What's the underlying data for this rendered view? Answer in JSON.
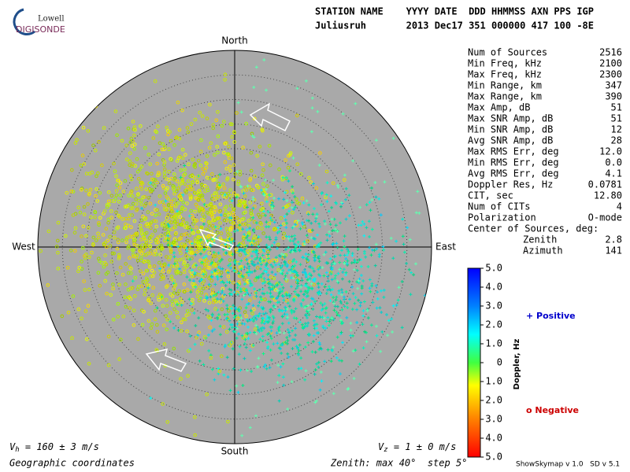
{
  "logo": {
    "brand": "Lowell",
    "product": "DIGISONDE"
  },
  "header": {
    "line1": "STATION NAME    YYYY DATE  DDD HHMMSS AXN PPS IGP",
    "line2": "Juliusruh       2013 Dec17 351 000000 417 100 -8E"
  },
  "directions": {
    "north": "North",
    "south": "South",
    "west": "West",
    "east": "East"
  },
  "parameters": [
    [
      "Num of Sources",
      "2516"
    ],
    [
      "Min Freq, kHz",
      "2100"
    ],
    [
      "Max Freq, kHz",
      "2300"
    ],
    [
      "Min Range, km",
      "347"
    ],
    [
      "Max Range, km",
      "390"
    ],
    [
      "Max Amp, dB",
      "51"
    ],
    [
      "Max SNR Amp, dB",
      "51"
    ],
    [
      "Min SNR Amp, dB",
      "12"
    ],
    [
      "Avg SNR Amp, dB",
      "28"
    ],
    [
      "Max RMS Err, deg",
      "12.0"
    ],
    [
      "Min RMS Err, deg",
      "0.0"
    ],
    [
      "Avg RMS Err, deg",
      "4.1"
    ],
    [
      "Doppler Res, Hz",
      "0.0781"
    ],
    [
      "CIT, sec",
      "12.80"
    ],
    [
      "Num of CITs",
      "4"
    ],
    [
      "Polarization",
      "O-mode"
    ]
  ],
  "center": {
    "title": "Center of Sources, deg:",
    "rows": [
      [
        "Zenith",
        "2.8"
      ],
      [
        "Azimuth",
        "141"
      ]
    ]
  },
  "colorbar": {
    "title": "Doppler, Hz",
    "ticks": [
      "5.0",
      "4.0",
      "3.0",
      "2.0",
      "1.0",
      "0",
      "-1.0",
      "-2.0",
      "-3.0",
      "-4.0",
      "-5.0"
    ]
  },
  "legend": {
    "positive": "+ Positive",
    "negative": "o Negative"
  },
  "footer": {
    "vh": {
      "symbol": "V",
      "subscript": "h",
      "text": " = 160 ± 3 m/s"
    },
    "vz": {
      "symbol": "V",
      "subscript": "z",
      "text": " = 1 ± 0 m/s"
    },
    "coordinates": "Geographic coordinates",
    "zenith": "Zenith: max 40°  step 5°",
    "version": "ShowSkymap v 1.0   SD v 5.1"
  }
}
